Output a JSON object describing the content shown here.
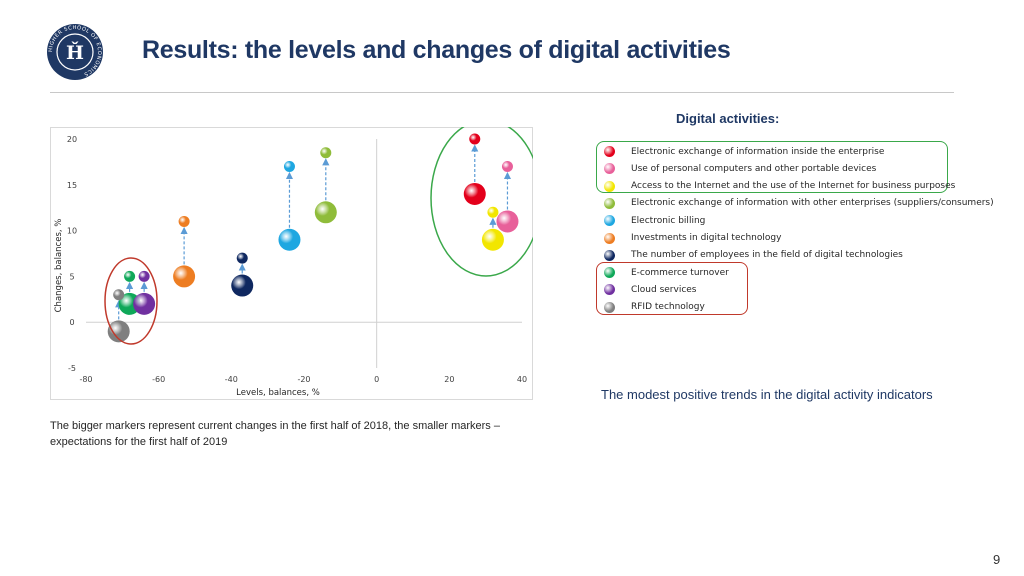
{
  "header": {
    "title": "Results: the levels and changes of digital activities",
    "logo_text": "HIGHER SCHOOL OF ECONOMICS"
  },
  "legend": {
    "title": "Digital activities:",
    "items": [
      {
        "label": "Electronic exchange of information inside the enterprise",
        "color": "#e3001b"
      },
      {
        "label": "Use of personal computers and other portable devices",
        "color": "#e8609a"
      },
      {
        "label": "Access to the Internet and the use of the Internet for business purposes",
        "color": "#f2e600"
      },
      {
        "label": "Electronic exchange of information  with other enterprises (suppliers/consumers)",
        "color": "#8fbc3a"
      },
      {
        "label": "Electronic billing",
        "color": "#1ea7e1"
      },
      {
        "label": "Investments in digital technology",
        "color": "#ed7d22"
      },
      {
        "label": "The number of employees in the field of digital technologies",
        "color": "#0f2860"
      },
      {
        "label": "E-commerce turnover",
        "color": "#0fa859"
      },
      {
        "label": "Cloud services",
        "color": "#7030a0"
      },
      {
        "label": "RFID technology",
        "color": "#7f7f7f"
      }
    ]
  },
  "trend_note": "The modest positive trends in the digital activity indicators",
  "caption": "The bigger markers represent current changes in the first half of 2018, the smaller markers – expectations for the first half of 2019",
  "page_number": "9",
  "chart_data": {
    "type": "scatter",
    "xlabel": "Levels, balances, %",
    "ylabel": "Changes, balances, %",
    "xlim": [
      -80,
      40
    ],
    "ylim": [
      -5,
      20
    ],
    "xticks": [
      -80,
      -60,
      -40,
      -20,
      0,
      20,
      40
    ],
    "yticks": [
      -5,
      0,
      5,
      10,
      15,
      20
    ],
    "grid": false,
    "series": [
      {
        "name": "Electronic exchange of information inside the enterprise",
        "color": "#e3001b",
        "current": [
          27,
          14
        ],
        "expected": [
          27,
          20
        ]
      },
      {
        "name": "Use of personal computers and other portable devices",
        "color": "#e8609a",
        "current": [
          36,
          11
        ],
        "expected": [
          36,
          17
        ]
      },
      {
        "name": "Access to the Internet and the use of the Internet for business purposes",
        "color": "#f2e600",
        "current": [
          32,
          9
        ],
        "expected": [
          32,
          12
        ]
      },
      {
        "name": "Electronic exchange of information  with other enterprises (suppliers/consumers)",
        "color": "#8fbc3a",
        "current": [
          -14,
          12
        ],
        "expected": [
          -14,
          18.5
        ]
      },
      {
        "name": "Electronic billing",
        "color": "#1ea7e1",
        "current": [
          -24,
          9
        ],
        "expected": [
          -24,
          17
        ]
      },
      {
        "name": "Investments in digital technology",
        "color": "#ed7d22",
        "current": [
          -53,
          5
        ],
        "expected": [
          -53,
          11
        ]
      },
      {
        "name": "The number of employees in the field of digital technologies",
        "color": "#0f2860",
        "current": [
          -37,
          4
        ],
        "expected": [
          -37,
          7
        ]
      },
      {
        "name": "E-commerce turnover",
        "color": "#0fa859",
        "current": [
          -68,
          2
        ],
        "expected": [
          -68,
          5
        ]
      },
      {
        "name": "Cloud services",
        "color": "#7030a0",
        "current": [
          -64,
          2
        ],
        "expected": [
          -64,
          5
        ]
      },
      {
        "name": "RFID technology",
        "color": "#7f7f7f",
        "current": [
          -71,
          -1
        ],
        "expected": [
          -71,
          3
        ]
      }
    ]
  }
}
